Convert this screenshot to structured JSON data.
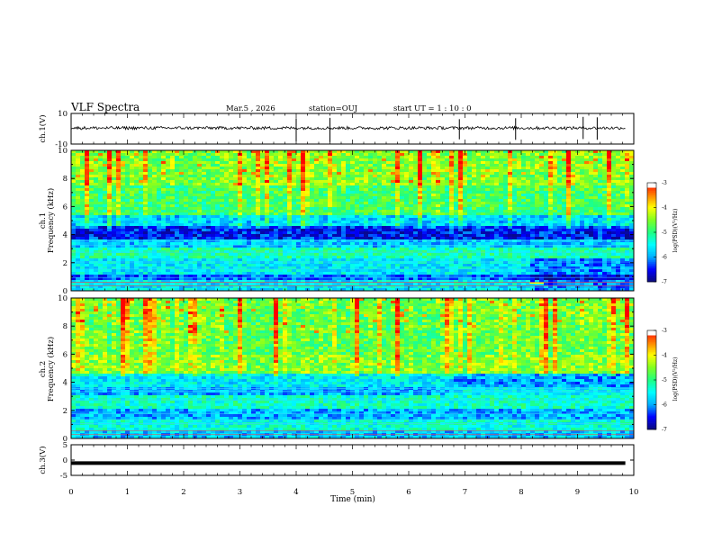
{
  "header": {
    "title": "VLF Spectra",
    "date": "Mar.5 , 2026",
    "station": "station=OUJ",
    "start_ut": "start UT = 1 : 10 : 0"
  },
  "colors": {
    "colormap": [
      "#0a0a7a",
      "#0000ff",
      "#00b0ff",
      "#00ffff",
      "#20ff80",
      "#80ff20",
      "#ffff00",
      "#ff8000",
      "#ff0000",
      "#ffffff"
    ],
    "waveform": "#000000"
  },
  "chart_data": [
    {
      "type": "line",
      "panel": "ch1-waveform",
      "ylabel": "ch.1(V)",
      "ylim": [
        -10,
        10
      ],
      "y_ticks": [
        "10",
        "-10"
      ],
      "approx_level": 0.5,
      "approx_noise_amplitude": 2,
      "spikes_at_min": [
        4.0,
        4.6,
        6.9,
        7.9,
        9.1,
        9.35
      ]
    },
    {
      "type": "heatmap",
      "panel": "ch1-spectrogram",
      "ylabel": "ch.1",
      "ylabel2": "Frequency (kHz)",
      "ylim": [
        0,
        10
      ],
      "y_ticks": [
        "0",
        "2",
        "4",
        "6",
        "8",
        "10"
      ],
      "colorbar": {
        "label": "log(PSD)(V²/Hz)",
        "range": [
          -7,
          -3
        ],
        "ticks": [
          "-3",
          "-4",
          "-5",
          "-6",
          "-7"
        ]
      },
      "bands": [
        {
          "f_min": 0.0,
          "f_max": 0.7,
          "level": -5.6
        },
        {
          "f_min": 0.7,
          "f_max": 1.2,
          "level": -6.2
        },
        {
          "f_min": 1.2,
          "f_max": 2.4,
          "level": -5.6
        },
        {
          "f_min": 2.4,
          "f_max": 3.0,
          "level": -5.2
        },
        {
          "f_min": 3.0,
          "f_max": 3.6,
          "level": -5.8
        },
        {
          "f_min": 3.6,
          "f_max": 4.6,
          "level": -6.5
        },
        {
          "f_min": 4.6,
          "f_max": 5.4,
          "level": -5.8
        },
        {
          "f_min": 5.4,
          "f_max": 7.5,
          "level": -5.0
        },
        {
          "f_min": 7.5,
          "f_max": 10.0,
          "level": -4.7
        }
      ],
      "regime_change_min": 8.15
    },
    {
      "type": "heatmap",
      "panel": "ch2-spectrogram",
      "ylabel": "ch.2",
      "ylabel2": "Frequency (kHz)",
      "ylim": [
        0,
        10
      ],
      "y_ticks": [
        "0",
        "2",
        "4",
        "6",
        "8",
        "10"
      ],
      "colorbar": {
        "label": "log(PSD)(V²/Hz)",
        "range": [
          -7,
          -3
        ],
        "ticks": [
          "-3",
          "-4",
          "-5",
          "-6",
          "-7"
        ]
      },
      "bands": [
        {
          "f_min": 0.0,
          "f_max": 0.6,
          "level": -5.8
        },
        {
          "f_min": 0.6,
          "f_max": 1.4,
          "level": -5.4
        },
        {
          "f_min": 1.4,
          "f_max": 2.2,
          "level": -5.9
        },
        {
          "f_min": 2.2,
          "f_max": 3.0,
          "level": -5.3
        },
        {
          "f_min": 3.0,
          "f_max": 3.7,
          "level": -5.9
        },
        {
          "f_min": 3.7,
          "f_max": 4.6,
          "level": -5.6
        },
        {
          "f_min": 4.6,
          "f_max": 6.0,
          "level": -4.6
        },
        {
          "f_min": 6.0,
          "f_max": 10.0,
          "level": -4.8
        }
      ],
      "regime_change_min": 6.8
    },
    {
      "type": "line",
      "panel": "ch3-waveform",
      "ylabel": "ch.3(V)",
      "ylim": [
        -5,
        5
      ],
      "y_ticks": [
        "5",
        "0",
        "-5"
      ],
      "level": -1
    }
  ],
  "x_axis": {
    "label": "Time (min)",
    "range": [
      0,
      10
    ],
    "ticks": [
      "0",
      "1",
      "2",
      "3",
      "4",
      "5",
      "6",
      "7",
      "8",
      "9",
      "10"
    ]
  }
}
